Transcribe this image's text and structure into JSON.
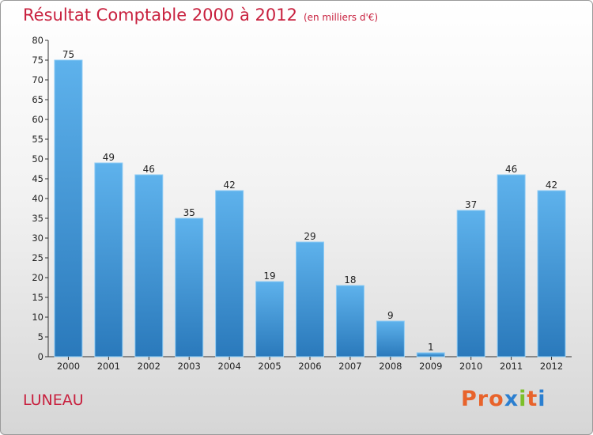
{
  "title": "Résultat Comptable 2000 à 2012",
  "subtitle": "(en milliers d'€)",
  "location": "LUNEAU",
  "brand": {
    "text": "Proxiti",
    "colors": [
      "#e8632b",
      "#e8632b",
      "#e8632b",
      "#2b7fd0",
      "#7cbf2a",
      "#e8632b",
      "#2b7fd0"
    ]
  },
  "colors": {
    "title": "#c8203e",
    "bar_light": "#5eb2ec",
    "bar_dark": "#2a79bb"
  },
  "chart_data": {
    "type": "bar",
    "categories": [
      "2000",
      "2001",
      "2002",
      "2003",
      "2004",
      "2005",
      "2006",
      "2007",
      "2008",
      "2009",
      "2010",
      "2011",
      "2012"
    ],
    "values": [
      75,
      49,
      46,
      35,
      42,
      19,
      29,
      18,
      9,
      1,
      37,
      46,
      42
    ],
    "value_labels": [
      "75",
      "49",
      "46",
      "35",
      "42",
      "19",
      "29",
      "18",
      "9",
      "1",
      "37",
      "46",
      "42"
    ],
    "ylim": [
      0,
      80
    ],
    "yticks": [
      0,
      5,
      10,
      15,
      20,
      25,
      30,
      35,
      40,
      45,
      50,
      55,
      60,
      65,
      70,
      75,
      80
    ],
    "ytick_labels": [
      "0",
      "5",
      "10",
      "15",
      "20",
      "25",
      "30",
      "35",
      "40",
      "45",
      "50",
      "55",
      "60",
      "65",
      "70",
      "75",
      "80"
    ],
    "grid": false
  }
}
